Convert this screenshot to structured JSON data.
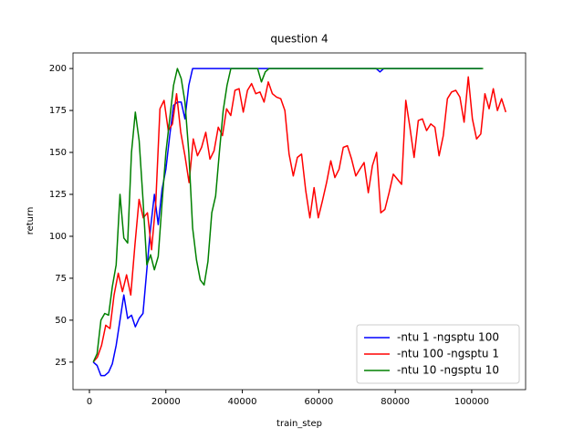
{
  "chart_data": {
    "type": "line",
    "title": "question 4",
    "xlabel": "train_step",
    "ylabel": "return",
    "xlim": [
      -4300,
      114100
    ],
    "ylim": [
      8.6,
      209.3
    ],
    "xticks": [
      0,
      20000,
      40000,
      60000,
      80000,
      100000
    ],
    "yticks": [
      25,
      50,
      75,
      100,
      125,
      150,
      175,
      200
    ],
    "legend": "lower right",
    "series": [
      {
        "name": "-ntu 1 -ngsptu 100",
        "color": "#0000ff",
        "x": [
          1000,
          2000,
          3000,
          4000,
          5000,
          6000,
          7000,
          8000,
          9000,
          10000,
          11000,
          12000,
          13000,
          14000,
          15000,
          16000,
          17000,
          18000,
          19000,
          20000,
          21000,
          22000,
          23000,
          24000,
          25000,
          26000,
          27000,
          75000,
          76000,
          77000,
          102600
        ],
        "values": [
          25,
          23,
          17,
          17,
          19,
          24,
          35,
          50,
          65,
          51,
          53,
          46,
          51,
          54,
          80,
          105,
          125,
          107,
          128,
          140,
          160,
          178,
          180,
          180,
          170,
          190,
          200,
          200,
          198,
          200,
          200
        ]
      },
      {
        "name": "-ntu 100 -ngsptu 1",
        "color": "#ff0000",
        "x": [
          1000,
          2090,
          3180,
          4270,
          5360,
          6450,
          7540,
          8630,
          9720,
          10810,
          11900,
          12990,
          14080,
          15170,
          16260,
          17350,
          18440,
          19530,
          20620,
          21710,
          22800,
          23890,
          24980,
          26070,
          27160,
          28250,
          29340,
          30430,
          31520,
          32610,
          33700,
          34790,
          35880,
          36970,
          38060,
          39150,
          40240,
          41330,
          42420,
          43510,
          44600,
          45690,
          46780,
          47870,
          48960,
          50050,
          51140,
          52230,
          53320,
          54410,
          55500,
          56590,
          57680,
          58770,
          59860,
          60950,
          62040,
          63130,
          64220,
          65310,
          66400,
          67490,
          68580,
          69670,
          70760,
          71850,
          72940,
          74030,
          75120,
          76210,
          77300,
          78390,
          79480,
          80570,
          81660,
          82750,
          83840,
          84930,
          86020,
          87110,
          88200,
          89290,
          90380,
          91470,
          92560,
          93650,
          94740,
          95830,
          96920,
          98010,
          99100,
          100190,
          101280,
          102370,
          103460,
          104550,
          105640,
          106730,
          107820,
          108910
        ],
        "values": [
          25,
          28,
          35,
          47,
          45,
          65,
          78,
          67,
          77,
          65,
          95,
          122,
          111,
          114,
          92,
          120,
          176,
          181,
          163,
          167,
          185,
          162,
          148,
          132,
          158,
          148,
          153,
          162,
          146,
          151,
          165,
          160,
          176,
          172,
          187,
          188,
          174,
          187,
          191,
          185,
          186,
          180,
          192,
          185,
          183,
          182,
          175,
          149,
          136,
          147,
          149,
          127,
          111,
          129,
          111,
          121,
          132,
          145,
          135,
          140,
          153,
          154,
          146,
          136,
          140,
          144,
          126,
          142,
          150,
          114,
          116,
          126,
          137,
          134,
          131,
          181,
          165,
          147,
          169,
          170,
          163,
          167,
          165,
          148,
          160,
          182,
          186,
          187,
          183,
          168,
          195,
          170,
          158,
          161,
          185,
          176,
          188,
          175,
          182,
          174
        ]
      },
      {
        "name": "-ntu 10 -ngsptu 10",
        "color": "#008000",
        "x": [
          1000,
          2000,
          3000,
          4000,
          5000,
          6000,
          7000,
          8000,
          9000,
          10000,
          11000,
          12000,
          13000,
          14000,
          15000,
          16000,
          17000,
          18000,
          19000,
          20000,
          21000,
          22000,
          23000,
          24000,
          25000,
          26000,
          27000,
          28000,
          29000,
          30000,
          31000,
          32000,
          33000,
          34000,
          35000,
          36000,
          37000,
          44000,
          45000,
          46000,
          47000,
          103000
        ],
        "values": [
          25,
          30,
          50,
          54,
          53,
          70,
          83,
          125,
          99,
          96,
          150,
          174,
          157,
          122,
          83,
          89,
          80,
          88,
          120,
          150,
          170,
          190,
          200,
          194,
          180,
          150,
          105,
          86,
          74,
          71,
          85,
          114,
          124,
          150,
          175,
          190,
          200,
          200,
          192,
          198,
          200,
          200
        ]
      }
    ]
  }
}
